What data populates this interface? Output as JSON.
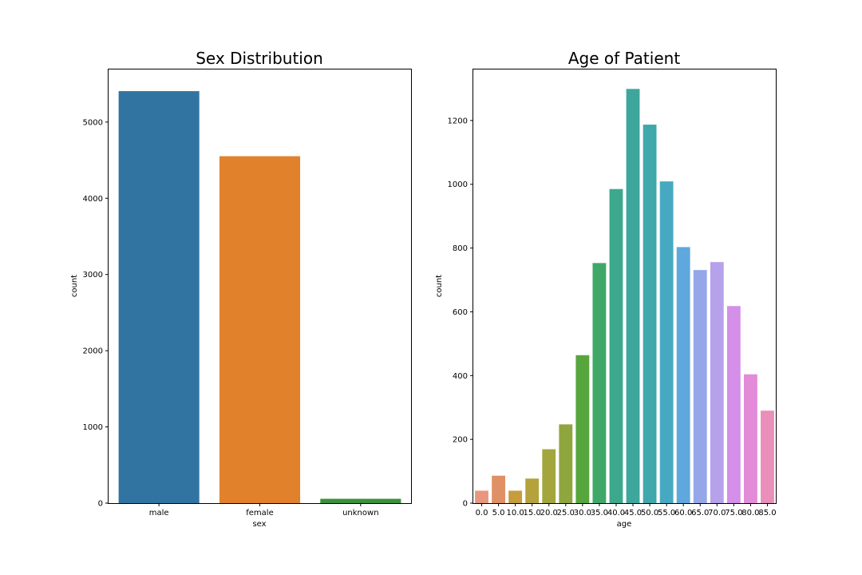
{
  "chart_data": [
    {
      "type": "bar",
      "title": "Sex Distribution",
      "xlabel": "sex",
      "ylabel": "count",
      "ylim": [
        0,
        5690
      ],
      "yticks": [
        0,
        1000,
        2000,
        3000,
        4000,
        5000
      ],
      "grid": false,
      "categories": [
        "male",
        "female",
        "unknown"
      ],
      "values": [
        5406,
        4552,
        57
      ],
      "colors": [
        "#3274a1",
        "#e1812c",
        "#3a923a"
      ]
    },
    {
      "type": "bar",
      "title": "Age of Patient",
      "xlabel": "age",
      "ylabel": "count",
      "ylim": [
        0,
        1360
      ],
      "yticks": [
        0,
        200,
        400,
        600,
        800,
        1000,
        1200
      ],
      "grid": false,
      "categories": [
        "0.0",
        "5.0",
        "10.0",
        "15.0",
        "20.0",
        "25.0",
        "30.0",
        "35.0",
        "40.0",
        "45.0",
        "50.0",
        "55.0",
        "60.0",
        "65.0",
        "70.0",
        "75.0",
        "80.0",
        "85.0"
      ],
      "values": [
        39,
        86,
        39,
        77,
        169,
        247,
        464,
        753,
        985,
        1299,
        1187,
        1009,
        803,
        731,
        756,
        618,
        404,
        290
      ],
      "colors": [
        "#e9967f",
        "#df9165",
        "#c69c3d",
        "#b5a23d",
        "#a3a63d",
        "#8ea63d",
        "#57a53d",
        "#3fa869",
        "#3ea88c",
        "#3ea79c",
        "#40a7aa",
        "#47a9c1",
        "#5fa8de",
        "#95a7e8",
        "#b6a1eb",
        "#d48fe8",
        "#e28bd8",
        "#e98fb9"
      ]
    }
  ]
}
